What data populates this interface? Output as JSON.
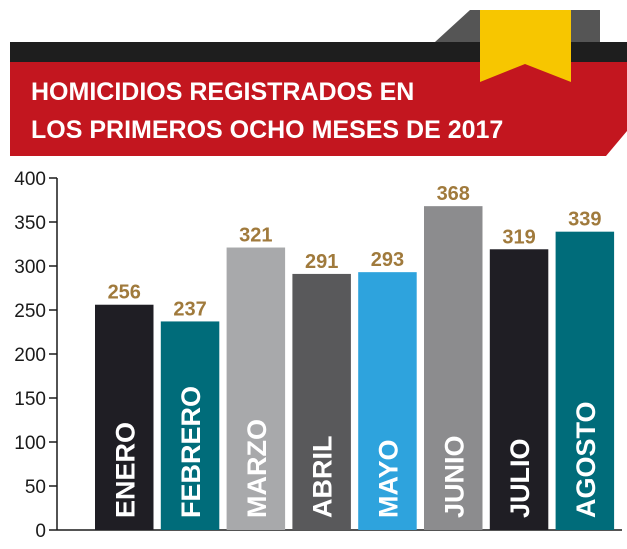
{
  "title_lines": [
    "HOMICIDIOS REGISTRADOS EN",
    "LOS PRIMEROS OCHO MESES DE 2017"
  ],
  "colors": {
    "banner_red": "#c3161f",
    "banner_dark": "#1e1e1e",
    "banner_tab_gray": "#555555",
    "ribbon_yellow": "#f7c600",
    "value_label": "#a07a3c"
  },
  "chart_data": {
    "type": "bar",
    "title": "HOMICIDIOS REGISTRADOS EN LOS PRIMEROS OCHO MESES DE 2017",
    "categories": [
      "ENERO",
      "FEBRERO",
      "MARZO",
      "ABRIL",
      "MAYO",
      "JUNIO",
      "JULIO",
      "AGOSTO"
    ],
    "values": [
      256,
      237,
      321,
      291,
      293,
      368,
      319,
      339
    ],
    "bar_colors": [
      "#1f1e24",
      "#006c7a",
      "#a8a9ab",
      "#59595b",
      "#2ea3dd",
      "#8c8c8e",
      "#1f1e24",
      "#006c7a"
    ],
    "label_colors": [
      "#ffffff",
      "#ffffff",
      "#ffffff",
      "#ffffff",
      "#ffffff",
      "#ffffff",
      "#ffffff",
      "#ffffff"
    ],
    "ylim": [
      0,
      400
    ],
    "yticks": [
      0,
      50,
      100,
      150,
      200,
      250,
      300,
      350,
      400
    ],
    "grid": false,
    "xlabel": "",
    "ylabel": ""
  }
}
